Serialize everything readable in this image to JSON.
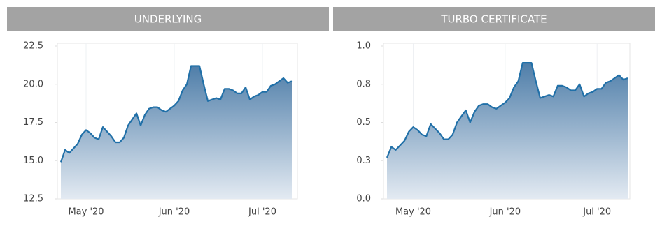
{
  "chart_data": [
    {
      "type": "area",
      "title": "UNDERLYING",
      "color": "#2170a8",
      "grid": true,
      "categories": [
        null,
        null,
        null,
        null,
        null,
        null,
        "May '20",
        null,
        null,
        null,
        null,
        null,
        null,
        null,
        null,
        null,
        null,
        null,
        null,
        null,
        null,
        null,
        null,
        null,
        null,
        null,
        null,
        "Jun '20",
        null,
        null,
        null,
        null,
        null,
        null,
        null,
        null,
        null,
        null,
        null,
        null,
        null,
        null,
        null,
        null,
        null,
        null,
        null,
        null,
        "Jul '20",
        null,
        null,
        null,
        null,
        null,
        null,
        null
      ],
      "values": [
        14.9,
        15.7,
        15.5,
        15.8,
        16.1,
        16.7,
        17.0,
        16.8,
        16.5,
        16.4,
        17.2,
        16.9,
        16.6,
        16.2,
        16.2,
        16.5,
        17.3,
        17.7,
        18.1,
        17.3,
        18.0,
        18.4,
        18.5,
        18.5,
        18.3,
        18.2,
        18.4,
        18.6,
        18.9,
        19.6,
        20.0,
        21.2,
        21.2,
        21.2,
        20.0,
        18.9,
        19.0,
        19.1,
        19.0,
        19.7,
        19.7,
        19.6,
        19.4,
        19.4,
        19.8,
        19.0,
        19.2,
        19.3,
        19.5,
        19.5,
        19.9,
        20.0,
        20.2,
        20.4,
        20.1,
        20.2
      ],
      "ylim": [
        12.5,
        22.5
      ],
      "yticks": [
        12.5,
        {
          "value": 15,
          "label": "15.0"
        },
        17.5,
        {
          "value": 20,
          "label": "20.0"
        },
        22.5
      ]
    },
    {
      "type": "area",
      "title": "TURBO CERTIFICATE",
      "color": "#2170a8",
      "grid": true,
      "categories": [
        null,
        null,
        null,
        null,
        null,
        null,
        "May '20",
        null,
        null,
        null,
        null,
        null,
        null,
        null,
        null,
        null,
        null,
        null,
        null,
        null,
        null,
        null,
        null,
        null,
        null,
        null,
        null,
        "Jun '20",
        null,
        null,
        null,
        null,
        null,
        null,
        null,
        null,
        null,
        null,
        null,
        null,
        null,
        null,
        null,
        null,
        null,
        null,
        null,
        null,
        "Jul '20",
        null,
        null,
        null,
        null,
        null,
        null,
        null
      ],
      "values": [
        0.27,
        0.34,
        0.32,
        0.35,
        0.38,
        0.44,
        0.47,
        0.45,
        0.42,
        0.41,
        0.49,
        0.46,
        0.43,
        0.39,
        0.39,
        0.42,
        0.5,
        0.54,
        0.58,
        0.5,
        0.57,
        0.61,
        0.62,
        0.62,
        0.6,
        0.59,
        0.61,
        0.63,
        0.66,
        0.73,
        0.77,
        0.89,
        0.89,
        0.89,
        0.77,
        0.66,
        0.67,
        0.68,
        0.67,
        0.74,
        0.74,
        0.73,
        0.71,
        0.71,
        0.75,
        0.67,
        0.69,
        0.7,
        0.72,
        0.72,
        0.76,
        0.77,
        0.79,
        0.81,
        0.78,
        0.79
      ],
      "ylim": [
        0,
        1
      ],
      "yticks": [
        {
          "value": 0,
          "label": "0.0"
        },
        {
          "value": 0.25,
          "label": "0.3"
        },
        {
          "value": 0.5,
          "label": "0.5"
        },
        {
          "value": 0.75,
          "label": "0.8"
        },
        {
          "value": 1,
          "label": "1.0"
        }
      ]
    }
  ]
}
